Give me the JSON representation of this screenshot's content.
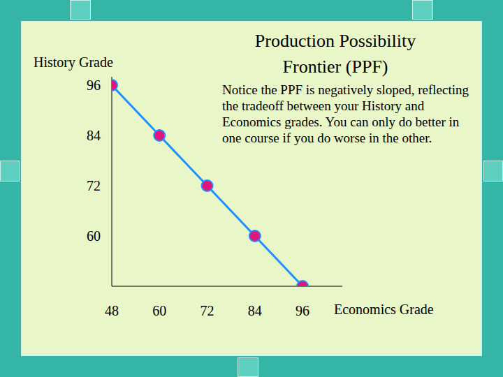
{
  "chart_data": {
    "type": "line",
    "title": "Production Possibility Frontier (PPF)",
    "annotation": "Notice the PPF is negatively sloped, reflecting the tradeoff between your History and Economics grades.  You can only do better in one course if you do worse in the other.",
    "x_label": "Economics Grade",
    "y_label": "History Grade",
    "x": [
      48,
      60,
      72,
      84,
      96
    ],
    "values": [
      96,
      84,
      72,
      60,
      48
    ],
    "color": "#1e90ff",
    "marker": "circle",
    "xlim": [
      48,
      106
    ],
    "ylim": [
      48,
      98
    ],
    "xticks": [
      48,
      60,
      72,
      84,
      96
    ],
    "yticks": [
      60,
      72,
      84,
      96
    ],
    "grid": false
  }
}
